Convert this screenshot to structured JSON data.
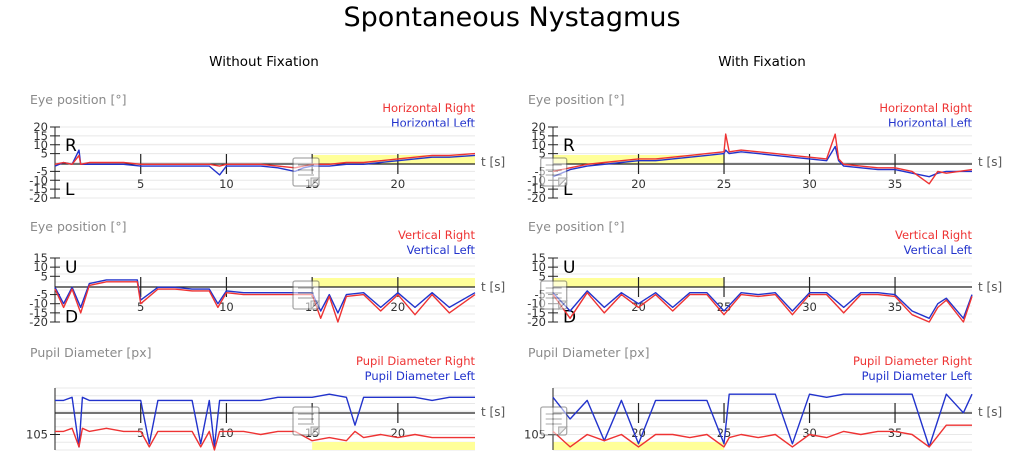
{
  "title": "Spontaneous Nystagmus",
  "columns": [
    {
      "title": "Without Fixation"
    },
    {
      "title": "With Fixation"
    }
  ],
  "colors": {
    "right": "#ee3333",
    "left": "#2233cc",
    "highlight": "#ffff99",
    "axis": "#222222"
  },
  "icon": "document-note-icon",
  "chart_data": [
    {
      "type": "line",
      "panel": "eye-position-horizontal",
      "column": "Without Fixation",
      "title": "Eye position [°]",
      "xlabel": "t [s]",
      "x_ticks": [
        5,
        10,
        15,
        20
      ],
      "y_ticks": [
        20,
        15,
        10,
        5,
        -5,
        -10,
        -15,
        -20
      ],
      "direction_labels": [
        "R",
        "L"
      ],
      "xlim": [
        0,
        24.5
      ],
      "ylim": [
        -20,
        20
      ],
      "highlight_x": [
        15,
        24.5
      ],
      "highlight_band": "above",
      "series": [
        {
          "name": "Horizontal Right",
          "color": "#ee3333",
          "x": [
            0,
            0.5,
            1,
            1.4,
            1.5,
            2,
            3,
            4,
            5,
            6,
            7,
            8,
            9,
            9.6,
            10,
            11,
            12,
            13,
            14,
            14.5,
            15,
            16,
            17,
            18,
            19,
            20,
            21,
            22,
            23,
            24.5
          ],
          "y": [
            -1,
            0,
            -1,
            4,
            -1,
            0,
            0,
            0,
            -1,
            -1,
            -1,
            -1,
            -1,
            -2,
            -1,
            -1,
            -1,
            -2,
            -3,
            -2,
            -1,
            -1,
            0,
            0,
            1,
            2,
            3,
            4,
            4,
            5
          ]
        },
        {
          "name": "Horizontal Left",
          "color": "#2233cc",
          "x": [
            0,
            0.5,
            1,
            1.4,
            1.5,
            2,
            3,
            4,
            5,
            6,
            7,
            8,
            9,
            9.6,
            10,
            11,
            12,
            13,
            14,
            14.5,
            15,
            16,
            17,
            18,
            19,
            20,
            21,
            22,
            23,
            24.5
          ],
          "y": [
            -2,
            0,
            -1,
            7,
            -1,
            -1,
            -1,
            -1,
            -2,
            -2,
            -2,
            -2,
            -2,
            -7,
            -2,
            -2,
            -2,
            -3,
            -5,
            -3,
            -2,
            -2,
            -1,
            -1,
            0,
            1,
            2,
            3,
            3,
            4
          ]
        }
      ]
    },
    {
      "type": "line",
      "panel": "eye-position-horizontal",
      "column": "With Fixation",
      "title": "Eye position [°]",
      "xlabel": "t [s]",
      "x_ticks": [
        20,
        25,
        30,
        35
      ],
      "y_ticks": [
        20,
        15,
        10,
        5,
        -5,
        -10,
        -15,
        -20
      ],
      "direction_labels": [
        "R",
        "L"
      ],
      "xlim": [
        15,
        39.5
      ],
      "ylim": [
        -20,
        20
      ],
      "highlight_x": [
        15,
        25
      ],
      "highlight_band": "above",
      "series": [
        {
          "name": "Horizontal Right",
          "color": "#ee3333",
          "x": [
            15,
            16,
            17,
            18,
            19,
            20,
            21,
            22,
            23,
            24,
            25,
            25.1,
            25.3,
            26,
            27,
            28,
            29,
            30,
            31,
            31.5,
            31.7,
            32,
            33,
            34,
            35,
            36,
            37,
            37.5,
            38,
            39.5
          ],
          "y": [
            -5,
            -3,
            -1,
            0,
            1,
            2,
            2,
            3,
            4,
            5,
            6,
            16,
            6,
            7,
            6,
            5,
            4,
            3,
            2,
            16,
            2,
            -1,
            -2,
            -3,
            -3,
            -5,
            -12,
            -5,
            -6,
            -4
          ]
        },
        {
          "name": "Horizontal Left",
          "color": "#2233cc",
          "x": [
            15,
            16,
            17,
            18,
            19,
            20,
            21,
            22,
            23,
            24,
            25,
            25.1,
            25.3,
            26,
            27,
            28,
            29,
            30,
            31,
            31.5,
            31.7,
            32,
            33,
            34,
            35,
            36,
            37,
            37.5,
            38,
            39.5
          ],
          "y": [
            -8,
            -4,
            -2,
            -1,
            0,
            1,
            1,
            2,
            3,
            4,
            5,
            7,
            5,
            6,
            5,
            4,
            3,
            2,
            1,
            9,
            1,
            -2,
            -3,
            -4,
            -4,
            -6,
            -8,
            -6,
            -5,
            -5
          ]
        }
      ]
    },
    {
      "type": "line",
      "panel": "eye-position-vertical",
      "column": "Without Fixation",
      "title": "Eye position [°]",
      "xlabel": "t [s]",
      "x_ticks": [
        5,
        10,
        15,
        20
      ],
      "y_ticks": [
        15,
        10,
        5,
        -5,
        -10,
        -15,
        -20
      ],
      "direction_labels": [
        "U",
        "D"
      ],
      "xlim": [
        0,
        24.5
      ],
      "ylim": [
        -20,
        15
      ],
      "highlight_x": [
        15,
        24.5
      ],
      "highlight_band": "above",
      "series": [
        {
          "name": "Vertical Right",
          "color": "#ee3333",
          "x": [
            0,
            0.5,
            1,
            1.5,
            2,
            3,
            4,
            4.8,
            5,
            6,
            7,
            8,
            9,
            9.5,
            10,
            11,
            12,
            13,
            14,
            15,
            15.5,
            16,
            16.5,
            17,
            18,
            19,
            20,
            21,
            22,
            23,
            24.5
          ],
          "y": [
            -2,
            -12,
            -2,
            -15,
            0,
            2,
            2,
            2,
            -10,
            -2,
            -2,
            -3,
            -3,
            -12,
            -4,
            -5,
            -5,
            -5,
            -5,
            -5,
            -18,
            -6,
            -20,
            -6,
            -5,
            -14,
            -5,
            -16,
            -5,
            -15,
            -5
          ]
        },
        {
          "name": "Vertical Left",
          "color": "#2233cc",
          "x": [
            0,
            0.5,
            1,
            1.5,
            2,
            3,
            4,
            4.8,
            5,
            6,
            7,
            8,
            9,
            9.5,
            10,
            11,
            12,
            13,
            14,
            15,
            15.5,
            16,
            16.5,
            17,
            18,
            19,
            20,
            21,
            22,
            23,
            24.5
          ],
          "y": [
            -1,
            -10,
            -1,
            -12,
            1,
            3,
            3,
            3,
            -8,
            -1,
            -1,
            -2,
            -2,
            -10,
            -3,
            -4,
            -4,
            -4,
            -4,
            -4,
            -14,
            -5,
            -15,
            -5,
            -4,
            -12,
            -4,
            -12,
            -4,
            -12,
            -4
          ]
        }
      ]
    },
    {
      "type": "line",
      "panel": "eye-position-vertical",
      "column": "With Fixation",
      "title": "Eye position [°]",
      "xlabel": "t [s]",
      "x_ticks": [
        20,
        25,
        30,
        35
      ],
      "y_ticks": [
        15,
        10,
        5,
        -5,
        -10,
        -15,
        -20
      ],
      "direction_labels": [
        "U",
        "D"
      ],
      "xlim": [
        15,
        39.5
      ],
      "ylim": [
        -20,
        15
      ],
      "highlight_x": [
        15,
        25
      ],
      "highlight_band": "above",
      "series": [
        {
          "name": "Vertical Right",
          "color": "#ee3333",
          "x": [
            15,
            16,
            17,
            18,
            19,
            20,
            21,
            22,
            23,
            24,
            25,
            26,
            27,
            28,
            29,
            30,
            31,
            32,
            33,
            34,
            35,
            36,
            37,
            37.5,
            38,
            39,
            39.5
          ],
          "y": [
            -5,
            -18,
            -4,
            -15,
            -5,
            -12,
            -5,
            -14,
            -5,
            -5,
            -16,
            -5,
            -6,
            -5,
            -16,
            -5,
            -5,
            -15,
            -5,
            -5,
            -6,
            -16,
            -20,
            -12,
            -8,
            -20,
            -6
          ]
        },
        {
          "name": "Vertical Left",
          "color": "#2233cc",
          "x": [
            15,
            16,
            17,
            18,
            19,
            20,
            21,
            22,
            23,
            24,
            25,
            26,
            27,
            28,
            29,
            30,
            31,
            32,
            33,
            34,
            35,
            36,
            37,
            37.5,
            38,
            39,
            39.5
          ],
          "y": [
            -4,
            -14,
            -3,
            -12,
            -4,
            -10,
            -4,
            -12,
            -4,
            -4,
            -14,
            -4,
            -5,
            -4,
            -14,
            -4,
            -4,
            -12,
            -4,
            -4,
            -5,
            -14,
            -18,
            -10,
            -7,
            -18,
            -5
          ]
        }
      ]
    },
    {
      "type": "line",
      "panel": "pupil-diameter",
      "column": "Without Fixation",
      "title": "Pupil Diameter [px]",
      "xlabel": "t [s]",
      "x_ticks": [
        5,
        10,
        15,
        20
      ],
      "y_ticks": [
        105
      ],
      "xlim": [
        0,
        24.5
      ],
      "ylim": [
        100,
        120
      ],
      "highlight_x": [
        15,
        24.5
      ],
      "highlight_band": "below",
      "series": [
        {
          "name": "Pupil Diameter Right",
          "color": "#ee3333",
          "x": [
            0,
            0.5,
            1,
            1.4,
            1.6,
            2,
            3,
            4,
            5,
            5.5,
            6,
            7,
            8,
            8.5,
            9,
            9.3,
            9.6,
            10,
            11,
            12,
            13,
            14,
            15,
            16,
            17,
            17.5,
            18,
            19,
            20,
            21,
            22,
            23,
            24.5
          ],
          "y": [
            106,
            106,
            107,
            101,
            107,
            106,
            107,
            106,
            106,
            101,
            106,
            106,
            106,
            101,
            106,
            100,
            106,
            106,
            106,
            105,
            106,
            106,
            103,
            104,
            103,
            106,
            104,
            105,
            104,
            105,
            104,
            104,
            104
          ]
        },
        {
          "name": "Pupil Diameter Left",
          "color": "#2233cc",
          "x": [
            0,
            0.5,
            1,
            1.4,
            1.6,
            2,
            3,
            4,
            5,
            5.5,
            6,
            7,
            8,
            8.5,
            9,
            9.3,
            9.6,
            10,
            11,
            12,
            13,
            14,
            15,
            16,
            17,
            17.5,
            18,
            19,
            20,
            21,
            22,
            23,
            24.5
          ],
          "y": [
            116,
            116,
            117,
            101,
            117,
            116,
            116,
            116,
            116,
            102,
            116,
            116,
            116,
            102,
            116,
            101,
            116,
            116,
            116,
            116,
            117,
            117,
            117,
            118,
            117,
            108,
            117,
            117,
            117,
            117,
            116,
            117,
            117
          ]
        }
      ]
    },
    {
      "type": "line",
      "panel": "pupil-diameter",
      "column": "With Fixation",
      "title": "Pupil Diameter [px]",
      "xlabel": "t [s]",
      "x_ticks": [
        20,
        25,
        30,
        35
      ],
      "y_ticks": [
        105
      ],
      "xlim": [
        15,
        39.5
      ],
      "ylim": [
        100,
        120
      ],
      "highlight_x": [
        15,
        25
      ],
      "highlight_band": "below",
      "series": [
        {
          "name": "Pupil Diameter Right",
          "color": "#ee3333",
          "x": [
            15,
            16,
            17,
            18,
            19,
            20,
            21,
            22,
            23,
            24,
            25,
            25.3,
            26,
            27,
            28,
            29,
            30,
            31,
            32,
            33,
            34,
            35,
            36,
            37,
            38,
            39,
            39.5
          ],
          "y": [
            106,
            101,
            105,
            103,
            105,
            101,
            105,
            105,
            104,
            105,
            101,
            104,
            105,
            104,
            105,
            101,
            105,
            104,
            106,
            105,
            106,
            106,
            105,
            101,
            108,
            108,
            108
          ]
        },
        {
          "name": "Pupil Diameter Left",
          "color": "#2233cc",
          "x": [
            15,
            16,
            17,
            18,
            19,
            20,
            21,
            22,
            23,
            24,
            25,
            25.3,
            26,
            27,
            28,
            29,
            30,
            31,
            32,
            33,
            34,
            35,
            36,
            37,
            38,
            39,
            39.5
          ],
          "y": [
            117,
            110,
            116,
            103,
            116,
            102,
            116,
            116,
            116,
            116,
            102,
            118,
            118,
            118,
            118,
            102,
            118,
            117,
            118,
            118,
            118,
            118,
            118,
            101,
            118,
            112,
            118
          ]
        }
      ]
    }
  ]
}
